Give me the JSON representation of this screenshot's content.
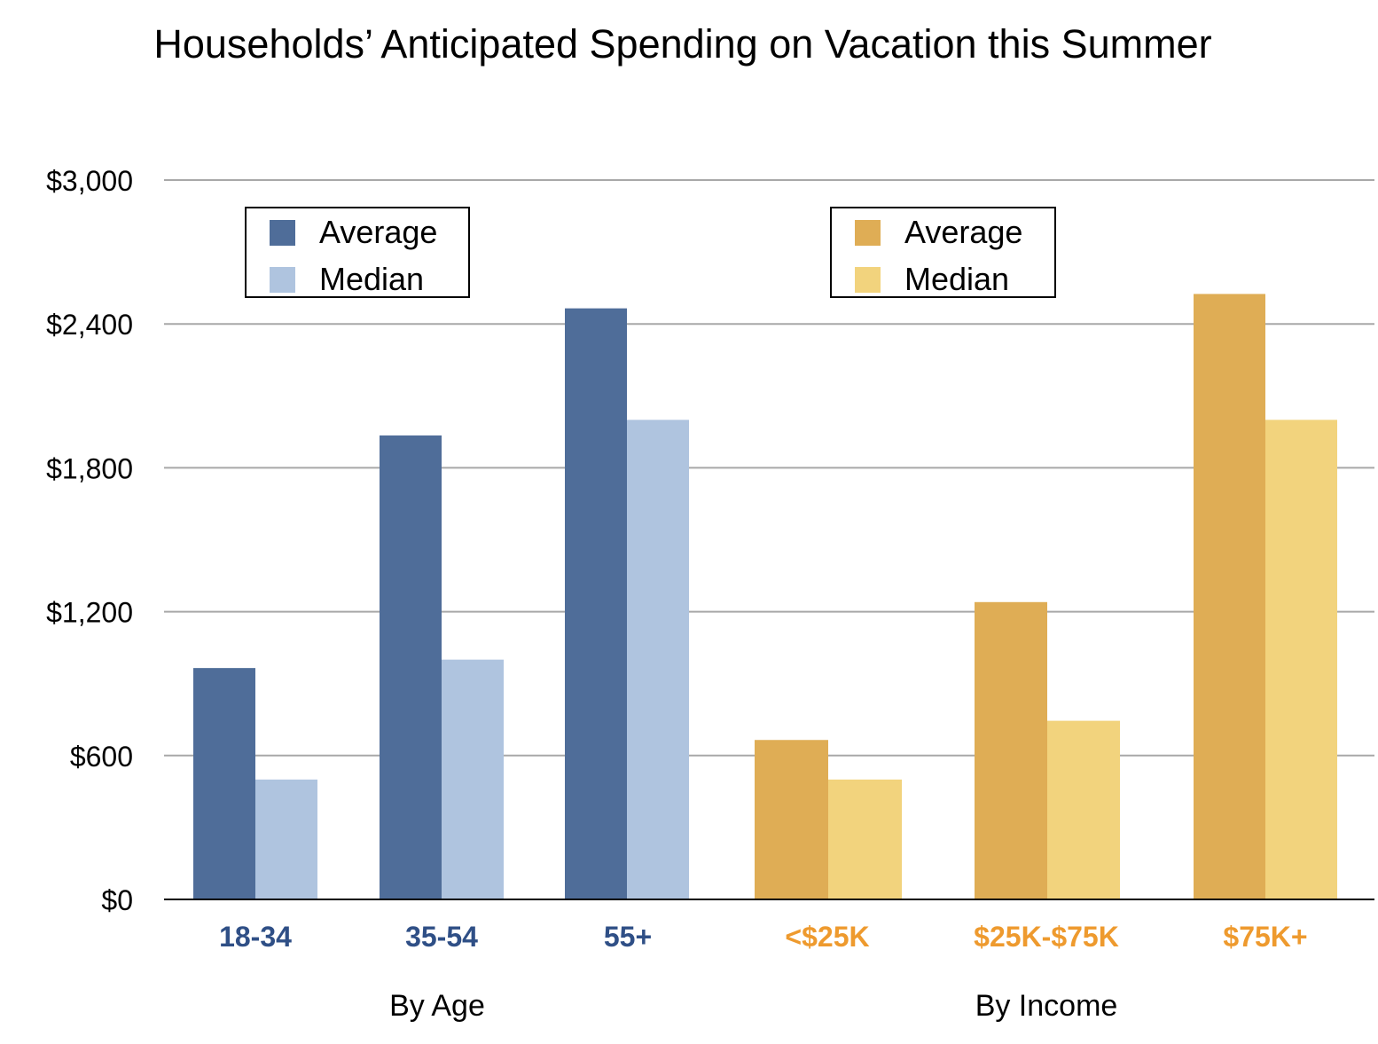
{
  "chart_data": {
    "type": "bar",
    "title": "Households’ Anticipated Spending on Vacation this Summer",
    "xlabel": "",
    "ylabel": "",
    "ylim": [
      0,
      3000
    ],
    "yticks": [
      0,
      600,
      1200,
      1800,
      2400,
      3000
    ],
    "ytick_labels": [
      "$0",
      "$600",
      "$1,200",
      "$1,800",
      "$2,400",
      "$3,000"
    ],
    "grid": true,
    "groups": [
      {
        "label": "By Age",
        "label_color": "#2f4f86",
        "legend_placement": "top-left",
        "categories": [
          "18-34",
          "35-54",
          "55+"
        ],
        "series": [
          {
            "name": "Average",
            "color": "#4f6d99",
            "values": [
              965,
              1935,
              2465
            ]
          },
          {
            "name": "Median",
            "color": "#afc4df",
            "values": [
              500,
              1000,
              2000
            ]
          }
        ]
      },
      {
        "label": "By Income",
        "label_color": "#ee9a2e",
        "legend_placement": "top-center",
        "categories": [
          "<$25K",
          "$25K-$75K",
          "$75K+"
        ],
        "series": [
          {
            "name": "Average",
            "color": "#dfad55",
            "values": [
              665,
              1240,
              2525
            ]
          },
          {
            "name": "Median",
            "color": "#f2d37d",
            "values": [
              500,
              745,
              2000
            ]
          }
        ]
      }
    ]
  }
}
